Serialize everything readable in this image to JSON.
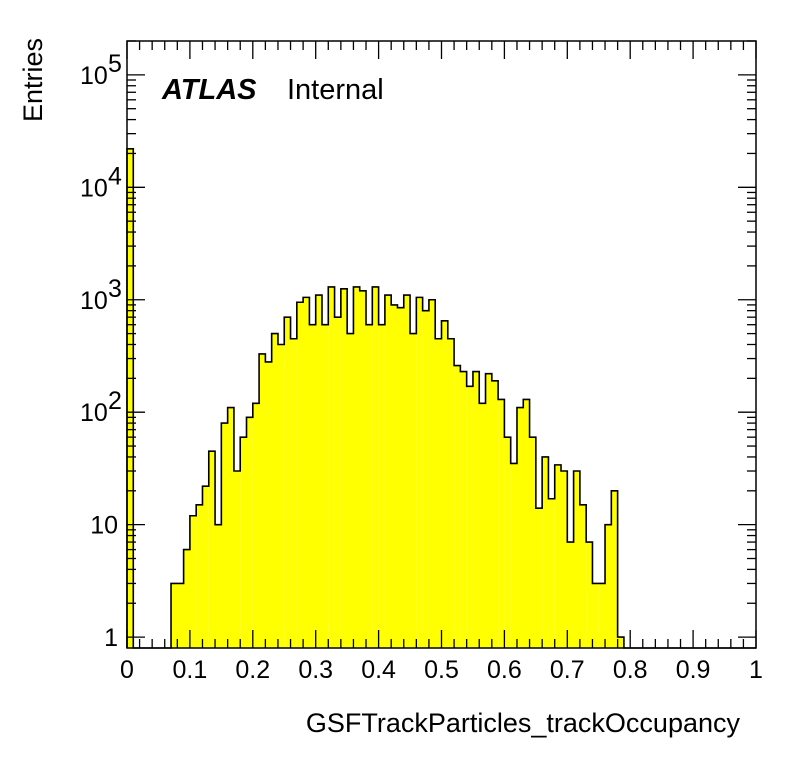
{
  "chart_data": {
    "type": "histogram",
    "xlabel": "GSFTrackParticles_trackOccupancy",
    "ylabel": "Entries",
    "label_bold": "ATLAS",
    "label_normal": "Internal",
    "xlim": [
      0,
      1
    ],
    "ylim": [
      0.8,
      200000
    ],
    "yscale": "log",
    "bin_width": 0.01,
    "fill_color": "#ffff00",
    "line_color": "#000000",
    "x_tick_labels": [
      "0",
      "0.1",
      "0.2",
      "0.3",
      "0.4",
      "0.5",
      "0.6",
      "0.7",
      "0.8",
      "0.9",
      "1"
    ],
    "y_tick_labels": [
      {
        "base": "1",
        "exp": ""
      },
      {
        "base": "10",
        "exp": ""
      },
      {
        "base": "10",
        "exp": "2"
      },
      {
        "base": "10",
        "exp": "3"
      },
      {
        "base": "10",
        "exp": "4"
      },
      {
        "base": "10",
        "exp": "5"
      }
    ],
    "values": [
      22000,
      0,
      0,
      0,
      0,
      0,
      0,
      3,
      3,
      6,
      12,
      15,
      22,
      45,
      10,
      80,
      110,
      30,
      60,
      90,
      120,
      330,
      280,
      500,
      400,
      700,
      450,
      950,
      1050,
      600,
      1100,
      600,
      1300,
      700,
      1250,
      500,
      1300,
      1200,
      600,
      1300,
      600,
      1100,
      900,
      850,
      1100,
      500,
      1050,
      800,
      1000,
      450,
      650,
      450,
      260,
      230,
      170,
      230,
      120,
      220,
      190,
      130,
      60,
      35,
      110,
      130,
      60,
      14,
      40,
      17,
      34,
      30,
      7,
      30,
      15,
      7,
      3,
      3,
      10,
      20,
      1,
      0,
      0,
      0,
      0,
      0,
      0,
      0,
      0,
      0,
      0,
      0,
      0,
      0,
      0,
      0,
      0,
      0,
      0,
      0,
      0,
      0
    ]
  }
}
